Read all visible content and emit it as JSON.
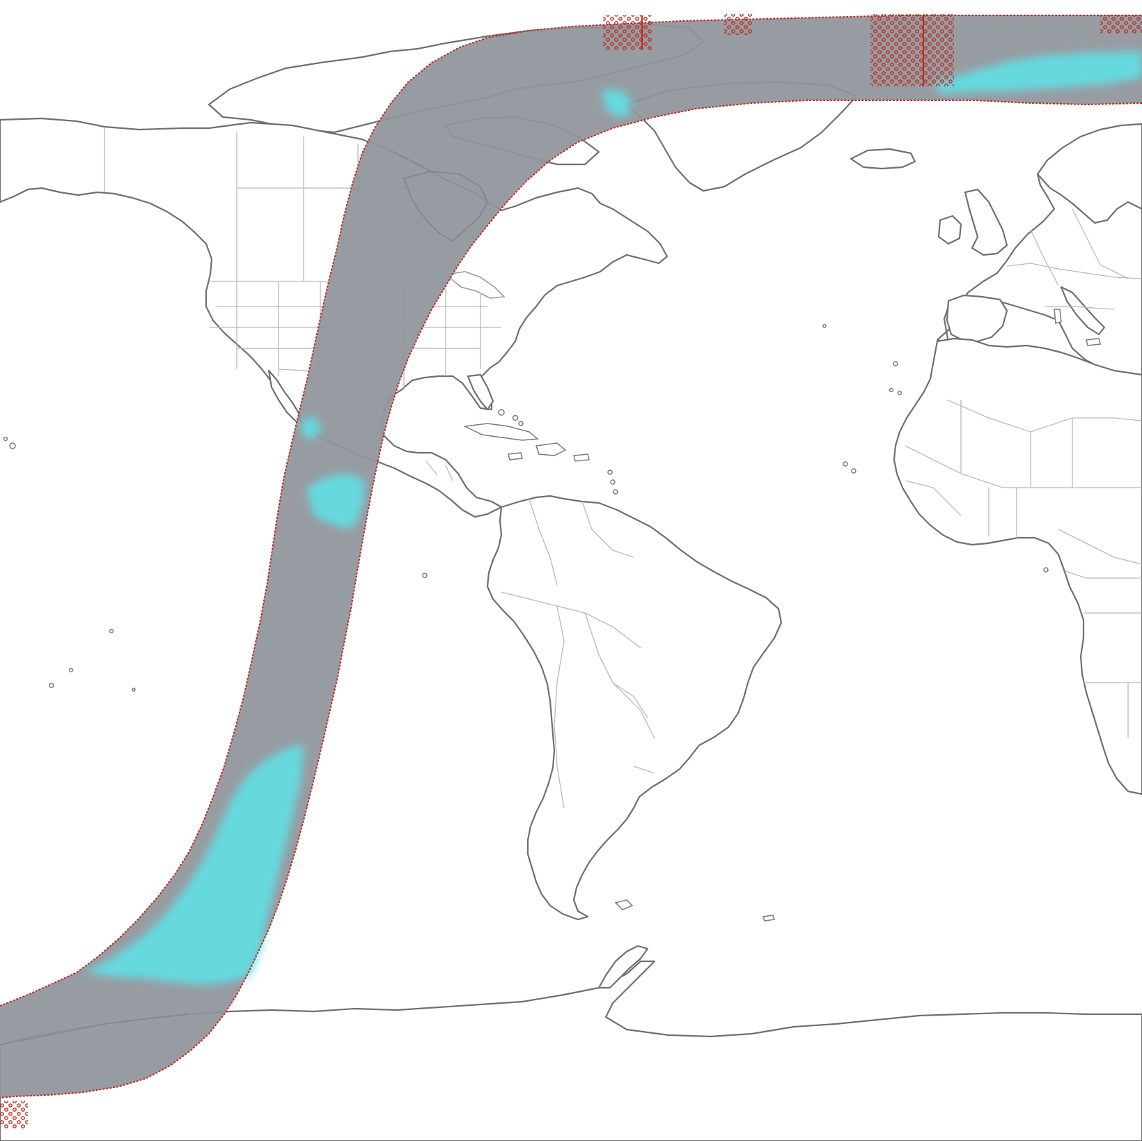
{
  "map": {
    "projection": "plate-carree",
    "background_color": "#ffffff",
    "land_fill": "#ffffff",
    "coastline_color": "#6f6f6f",
    "border_color": "#b9b9b9"
  },
  "swath": {
    "fill_color": "#8f949b",
    "fill_opacity": 0.93,
    "edge_color": "#c0281e",
    "data_color": "#5fe0e6"
  }
}
